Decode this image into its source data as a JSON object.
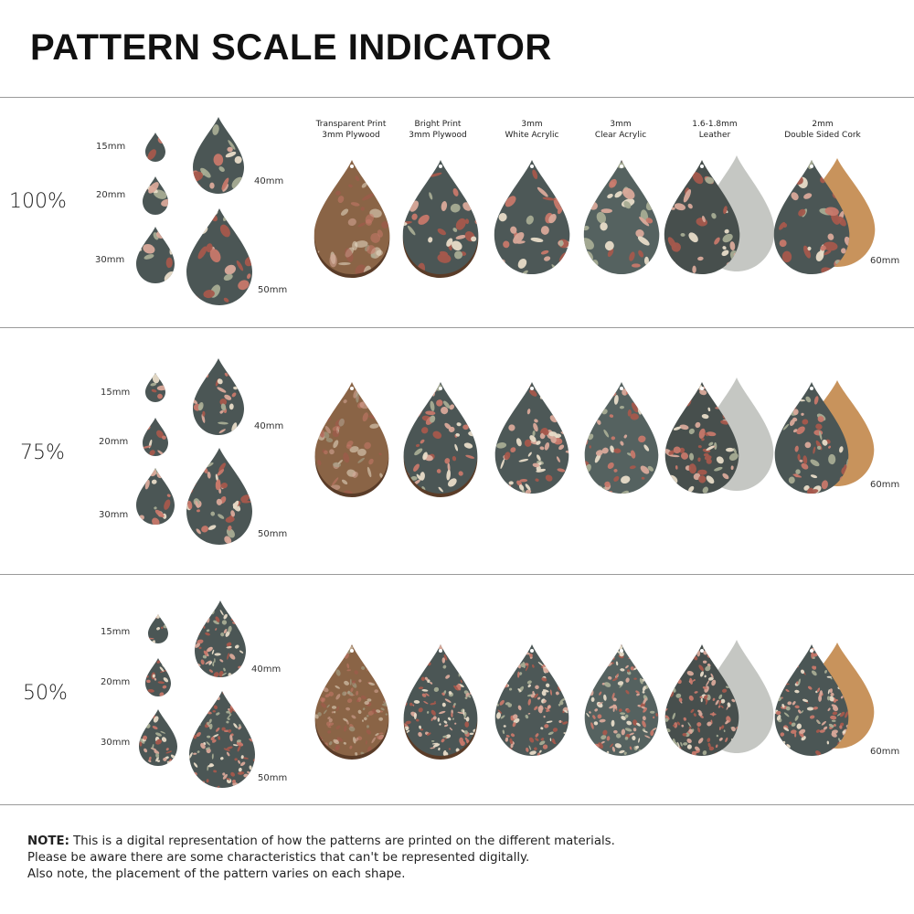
{
  "title": "PATTERN SCALE INDICATOR",
  "materials": [
    {
      "line1": "Transparent Print",
      "line2": "3mm Plywood",
      "base": "#8a6446",
      "back": null
    },
    {
      "line1": "Bright Print",
      "line2": "3mm Plywood",
      "base": "#4b5655",
      "back": null
    },
    {
      "line1": "3mm",
      "line2": "White Acrylic",
      "base": "#4d5857",
      "back": null
    },
    {
      "line1": "3mm",
      "line2": "Clear Acrylic",
      "base": "#556260",
      "back": null
    },
    {
      "line1": "1.6-1.8mm",
      "line2": "Leather",
      "base": "#474f4d",
      "back": "#c5c7c3"
    },
    {
      "line1": "2mm",
      "line2": "Double Sided Cork",
      "base": "#4b5655",
      "back": "#c8935c"
    }
  ],
  "sections": [
    {
      "scale": "100%",
      "sizes": [
        "15mm",
        "20mm",
        "30mm",
        "40mm",
        "50mm"
      ],
      "material_size": "60mm"
    },
    {
      "scale": "75%",
      "sizes": [
        "15mm",
        "20mm",
        "30mm",
        "40mm",
        "50mm"
      ],
      "material_size": "60mm"
    },
    {
      "scale": "50%",
      "sizes": [
        "15mm",
        "20mm",
        "30mm",
        "40mm",
        "50mm"
      ],
      "material_size": "60mm"
    }
  ],
  "colors": {
    "pattern_base": "#4b5655",
    "spot_colors": [
      "#c7786a",
      "#e8dcc8",
      "#a7ac94",
      "#a5584c",
      "#d9a99a"
    ]
  },
  "note": {
    "label": "NOTE:",
    "line1": " This is a digital representation of how the patterns are printed on the different materials.",
    "line2": "Please be aware there are some characteristics that can't be represented digitally.",
    "line3": "Also note, the placement of the pattern varies on each shape."
  }
}
